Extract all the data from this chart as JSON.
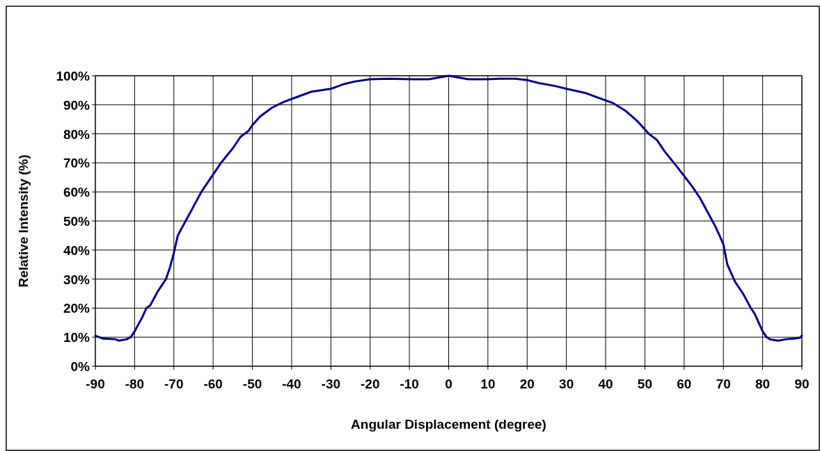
{
  "chart_data": {
    "type": "line",
    "xlabel": "Angular Displacement (degree)",
    "ylabel": "Relative Intensity (%)",
    "xlim": [
      -90,
      90
    ],
    "xticks": [
      -90,
      -80,
      -70,
      -60,
      -50,
      -40,
      -30,
      -20,
      -10,
      0,
      10,
      20,
      30,
      40,
      50,
      60,
      70,
      80,
      90
    ],
    "ylim": [
      0,
      100
    ],
    "yticks": [
      {
        "value": 0,
        "label": "0%"
      },
      {
        "value": 10,
        "label": "10%"
      },
      {
        "value": 20,
        "label": "20%"
      },
      {
        "value": 30,
        "label": "30%"
      },
      {
        "value": 40,
        "label": "40%"
      },
      {
        "value": 50,
        "label": "50%"
      },
      {
        "value": 60,
        "label": "60%"
      },
      {
        "value": 70,
        "label": "70%"
      },
      {
        "value": 80,
        "label": "80%"
      },
      {
        "value": 90,
        "label": "90%"
      },
      {
        "value": 100,
        "label": "100%"
      }
    ],
    "grid": true,
    "marker": "none",
    "line_style": "solid",
    "series": [
      {
        "color": "#000080",
        "x": [
          -90,
          -88,
          -85,
          -84,
          -82,
          -81,
          -80,
          -78,
          -77,
          -76,
          -74,
          -72,
          -71,
          -70,
          -69,
          -67,
          -65,
          -63,
          -60,
          -58,
          -55,
          -53,
          -51,
          -50,
          -48,
          -45,
          -42,
          -38,
          -35,
          -30,
          -27,
          -24,
          -20,
          -15,
          -10,
          -5,
          -2,
          0,
          3,
          5,
          10,
          13,
          17,
          20,
          23,
          27,
          30,
          35,
          38,
          42,
          45,
          48,
          51,
          53,
          55,
          58,
          60,
          62,
          64,
          66,
          68,
          70,
          71,
          73,
          75,
          77,
          78,
          79,
          80,
          81,
          82,
          84,
          86,
          88,
          89.5,
          90
        ],
        "values": [
          10.5,
          9.5,
          9.3,
          8.8,
          9.3,
          10,
          12,
          17,
          20,
          21,
          26,
          30,
          34,
          39,
          45,
          50,
          55,
          60,
          66,
          70,
          75,
          79,
          81,
          83,
          86,
          89,
          91,
          93,
          94.5,
          95.5,
          97,
          98,
          98.8,
          99,
          98.8,
          98.8,
          99.5,
          100,
          99.3,
          98.8,
          98.8,
          99,
          99,
          98.5,
          97.5,
          96.5,
          95.5,
          94,
          92.5,
          90.5,
          88,
          84.5,
          80,
          78,
          74,
          69,
          65.5,
          62,
          58,
          53,
          48,
          42,
          35,
          29,
          25,
          20,
          18,
          15,
          12,
          10,
          9.2,
          8.8,
          9.3,
          9.5,
          9.8,
          10.5
        ]
      }
    ]
  }
}
